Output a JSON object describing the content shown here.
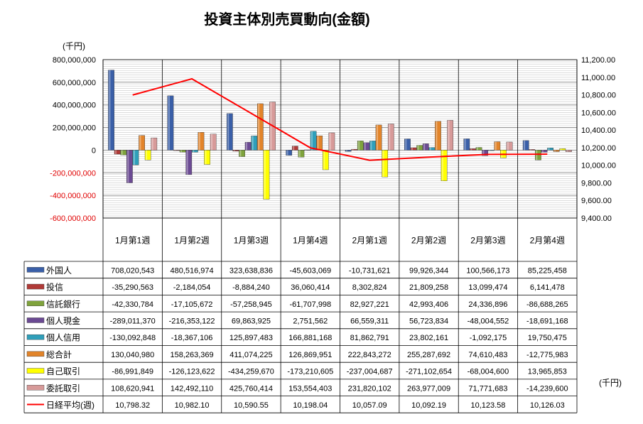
{
  "chart_data": {
    "type": "bar",
    "title": "投資主体別売買動向(金額)",
    "left_unit": "(千円)",
    "right_unit": "(千円)",
    "categories": [
      "1月第1週",
      "1月第2週",
      "1月第3週",
      "1月第4週",
      "2月第1週",
      "2月第2週",
      "2月第3週",
      "2月第4週"
    ],
    "left_axis": {
      "min": -600000000,
      "max": 800000000,
      "step": 200000000,
      "tick_labels": [
        "800,000,000",
        "600,000,000",
        "400,000,000",
        "200,000,000",
        "0",
        "-200,000,000",
        "-400,000,000",
        "-600,000,000"
      ]
    },
    "right_axis": {
      "min": 9400,
      "max": 11200,
      "step": 200,
      "tick_labels": [
        "11,200.00",
        "11,000.00",
        "10,800.00",
        "10,600.00",
        "10,400.00",
        "10,200.00",
        "10,000.00",
        "9,800.00",
        "9,600.00",
        "9,400.00"
      ]
    },
    "series": [
      {
        "name": "外国人",
        "type": "bar",
        "color": "#3a5fa8",
        "values": [
          708020543,
          480516974,
          323638836,
          -45603069,
          -10731621,
          99926344,
          100566173,
          85225458
        ],
        "labels": [
          "708,020,543",
          "480,516,974",
          "323,638,836",
          "-45,603,069",
          "-10,731,621",
          "99,926,344",
          "100,566,173",
          "85,225,458"
        ]
      },
      {
        "name": "投信",
        "type": "bar",
        "color": "#b03a37",
        "values": [
          -35290563,
          -2184054,
          -8884240,
          36060414,
          8302824,
          21809258,
          13099474,
          6141478
        ],
        "labels": [
          "-35,290,563",
          "-2,184,054",
          "-8,884,240",
          "36,060,414",
          "8,302,824",
          "21,809,258",
          "13,099,474",
          "6,141,478"
        ]
      },
      {
        "name": "信託銀行",
        "type": "bar",
        "color": "#7fa33c",
        "values": [
          -42330784,
          -17105672,
          -57258945,
          -61707998,
          82927221,
          42993406,
          24336896,
          -86688265
        ],
        "labels": [
          "-42,330,784",
          "-17,105,672",
          "-57,258,945",
          "-61,707,998",
          "82,927,221",
          "42,993,406",
          "24,336,896",
          "-86,688,265"
        ]
      },
      {
        "name": "個人現金",
        "type": "bar",
        "color": "#6b4a93",
        "values": [
          -289011370,
          -216353122,
          69863925,
          2751562,
          66559311,
          56723834,
          -48004552,
          -18691168
        ],
        "labels": [
          "-289,011,370",
          "-216,353,122",
          "69,863,925",
          "2,751,562",
          "66,559,311",
          "56,723,834",
          "-48,004,552",
          "-18,691,168"
        ]
      },
      {
        "name": "個人信用",
        "type": "bar",
        "color": "#2f9fba",
        "values": [
          -130092848,
          -18367106,
          125897483,
          166881168,
          81862791,
          23802161,
          -1092175,
          19750475
        ],
        "labels": [
          "-130,092,848",
          "-18,367,106",
          "125,897,483",
          "166,881,168",
          "81,862,791",
          "23,802,161",
          "-1,092,175",
          "19,750,475"
        ]
      },
      {
        "name": "総合計",
        "type": "bar",
        "color": "#e2842a",
        "values": [
          130040980,
          158263369,
          411074225,
          126869951,
          222843272,
          255287692,
          74610483,
          -12775983
        ],
        "labels": [
          "130,040,980",
          "158,263,369",
          "411,074,225",
          "126,869,951",
          "222,843,272",
          "255,287,692",
          "74,610,483",
          "-12,775,983"
        ]
      },
      {
        "name": "自己取引",
        "type": "bar",
        "color": "#ffff00",
        "values": [
          -86991849,
          -126123622,
          -434259670,
          -173210605,
          -237004687,
          -271102654,
          -68004600,
          13965853
        ],
        "labels": [
          "-86,991,849",
          "-126,123,622",
          "-434,259,670",
          "-173,210,605",
          "-237,004,687",
          "-271,102,654",
          "-68,004,600",
          "13,965,853"
        ]
      },
      {
        "name": "委託取引",
        "type": "bar",
        "color": "#d79a99",
        "values": [
          108620941,
          142492110,
          425760414,
          153554403,
          231820102,
          263977009,
          71771683,
          -14239600
        ],
        "labels": [
          "108,620,941",
          "142,492,110",
          "425,760,414",
          "153,554,403",
          "231,820,102",
          "263,977,009",
          "71,771,683",
          "-14,239,600"
        ]
      },
      {
        "name": "日経平均(週)",
        "type": "line",
        "color": "#ff0000",
        "values": [
          10798.32,
          10982.1,
          10590.55,
          10198.04,
          10057.09,
          10092.19,
          10123.58,
          10126.03
        ],
        "labels": [
          "10,798.32",
          "10,982.10",
          "10,590.55",
          "10,198.04",
          "10,057.09",
          "10,092.19",
          "10,123.58",
          "10,126.03"
        ]
      }
    ],
    "grid": true,
    "legend": "data-table"
  }
}
